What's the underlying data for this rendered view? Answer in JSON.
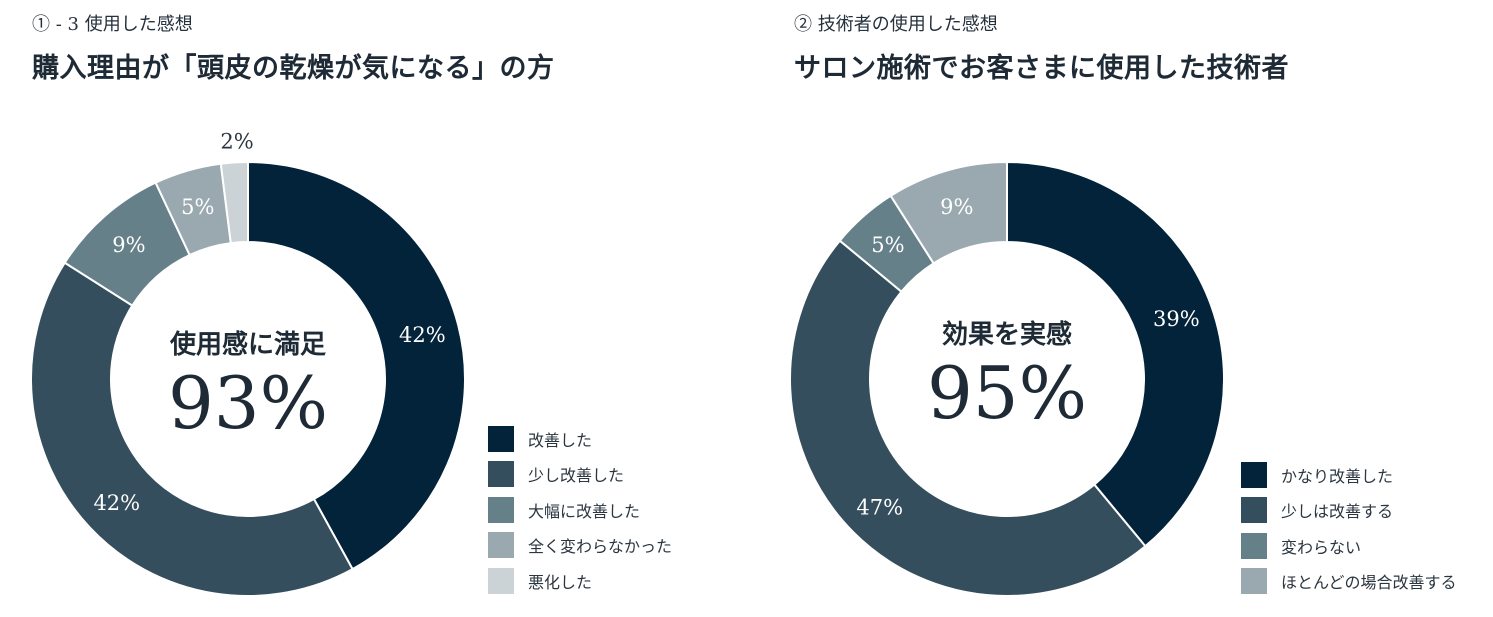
{
  "charts": [
    {
      "subtitle": "① - 3 使用した感想",
      "title": "購入理由が「頭皮の乾燥が気になる」の方",
      "center_label": "使用感に満足",
      "center_value": "93%"
    },
    {
      "subtitle": "② 技術者の使用した感想",
      "title": "サロン施術でお客さまに使用した技術者",
      "center_label": "効果を実感",
      "center_value": "95%"
    }
  ],
  "chart_data": [
    {
      "type": "pie",
      "title": "購入理由が「頭皮の乾燥が気になる」の方",
      "categories": [
        "改善した",
        "少し改善した",
        "大幅に改善した",
        "全く変わらなかった",
        "悪化した"
      ],
      "values": [
        42,
        42,
        9,
        5,
        2
      ],
      "labels": [
        "42%",
        "42%",
        "9%",
        "5%",
        "2%"
      ],
      "colors": [
        "#03233a",
        "#354e5d",
        "#66808a",
        "#9aa9b0",
        "#cbd3d6"
      ],
      "label_colors": [
        "#ffffff",
        "#ffffff",
        "#ffffff",
        "#ffffff",
        "#2b3640"
      ],
      "legend": "bottom-right"
    },
    {
      "type": "pie",
      "title": "サロン施術でお客さまに使用した技術者",
      "categories": [
        "かなり改善した",
        "少しは改善する",
        "変わらない",
        "ほとんどの場合改善する"
      ],
      "values": [
        39,
        47,
        5,
        9
      ],
      "labels": [
        "39%",
        "47%",
        "5%",
        "9%"
      ],
      "colors": [
        "#03233a",
        "#354e5d",
        "#66808a",
        "#9aa9b0"
      ],
      "label_colors": [
        "#ffffff",
        "#ffffff",
        "#ffffff",
        "#ffffff"
      ],
      "legend": "bottom-right"
    }
  ]
}
